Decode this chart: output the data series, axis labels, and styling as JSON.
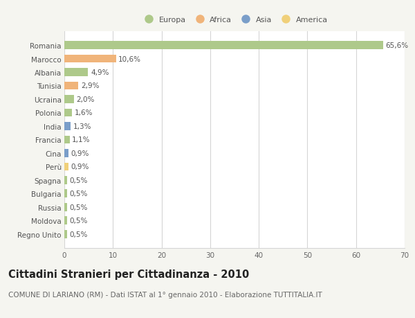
{
  "countries": [
    "Romania",
    "Marocco",
    "Albania",
    "Tunisia",
    "Ucraina",
    "Polonia",
    "India",
    "Francia",
    "Cina",
    "Perù",
    "Spagna",
    "Bulgaria",
    "Russia",
    "Moldova",
    "Regno Unito"
  ],
  "values": [
    65.6,
    10.6,
    4.9,
    2.9,
    2.0,
    1.6,
    1.3,
    1.1,
    0.9,
    0.9,
    0.5,
    0.5,
    0.5,
    0.5,
    0.5
  ],
  "labels": [
    "65,6%",
    "10,6%",
    "4,9%",
    "2,9%",
    "2,0%",
    "1,6%",
    "1,3%",
    "1,1%",
    "0,9%",
    "0,9%",
    "0,5%",
    "0,5%",
    "0,5%",
    "0,5%",
    "0,5%"
  ],
  "continents": [
    "Europa",
    "Africa",
    "Europa",
    "Africa",
    "Europa",
    "Europa",
    "Asia",
    "Europa",
    "Asia",
    "America",
    "Europa",
    "Europa",
    "Europa",
    "Europa",
    "Europa"
  ],
  "continent_colors": {
    "Europa": "#aec98a",
    "Africa": "#f0b47a",
    "Asia": "#7a9ec9",
    "America": "#f0d07a"
  },
  "legend_order": [
    "Europa",
    "Africa",
    "Asia",
    "America"
  ],
  "xlim": [
    0,
    70
  ],
  "xticks": [
    0,
    10,
    20,
    30,
    40,
    50,
    60,
    70
  ],
  "title": "Cittadini Stranieri per Cittadinanza - 2010",
  "subtitle": "COMUNE DI LARIANO (RM) - Dati ISTAT al 1° gennaio 2010 - Elaborazione TUTTITALIA.IT",
  "bg_color": "#f5f5f0",
  "bar_bg_color": "#ffffff",
  "grid_color": "#d5d5d5",
  "label_fontsize": 7.5,
  "title_fontsize": 10.5,
  "subtitle_fontsize": 7.5,
  "bar_height": 0.6
}
